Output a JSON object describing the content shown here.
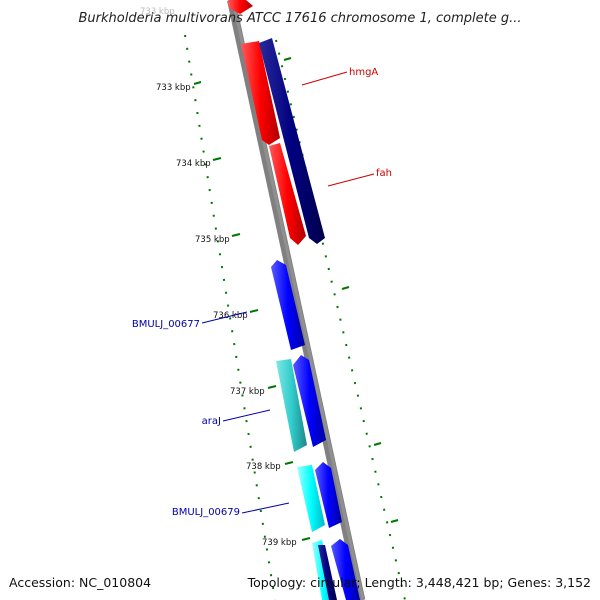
{
  "title": "Burkholderia multivorans ATCC 17616 chromosome 1, complete g...",
  "footer": {
    "accession": "Accession: NC_010804",
    "topology": "Topology: circular; Length: 3,448,421 bp; Genes: 3,152"
  },
  "ticks": [
    {
      "label": "733 kbp",
      "position_kbp": 733
    },
    {
      "label": "734 kbp",
      "position_kbp": 734
    },
    {
      "label": "735 kbp",
      "position_kbp": 735
    },
    {
      "label": "736 kbp",
      "position_kbp": 736
    },
    {
      "label": "737 kbp",
      "position_kbp": 737
    },
    {
      "label": "738 kbp",
      "position_kbp": 738
    },
    {
      "label": "739 kbp",
      "position_kbp": 739
    }
  ],
  "gene_labels": [
    {
      "text": "hmgA",
      "color": "#cc0000"
    },
    {
      "text": "fah",
      "color": "#cc0000"
    },
    {
      "text": "BMULJ_00677",
      "color": "#0000aa"
    },
    {
      "text": "araJ",
      "color": "#0000aa"
    },
    {
      "text": "BMULJ_00679",
      "color": "#0000aa"
    }
  ],
  "colors": {
    "red_gene": "#ff0000",
    "navy_gene": "#000080",
    "blue_gene": "#0000ff",
    "teal_gene": "#33cccc",
    "cyan_gene": "#00ffff",
    "backbone": "#808080",
    "tick": "#007700"
  }
}
